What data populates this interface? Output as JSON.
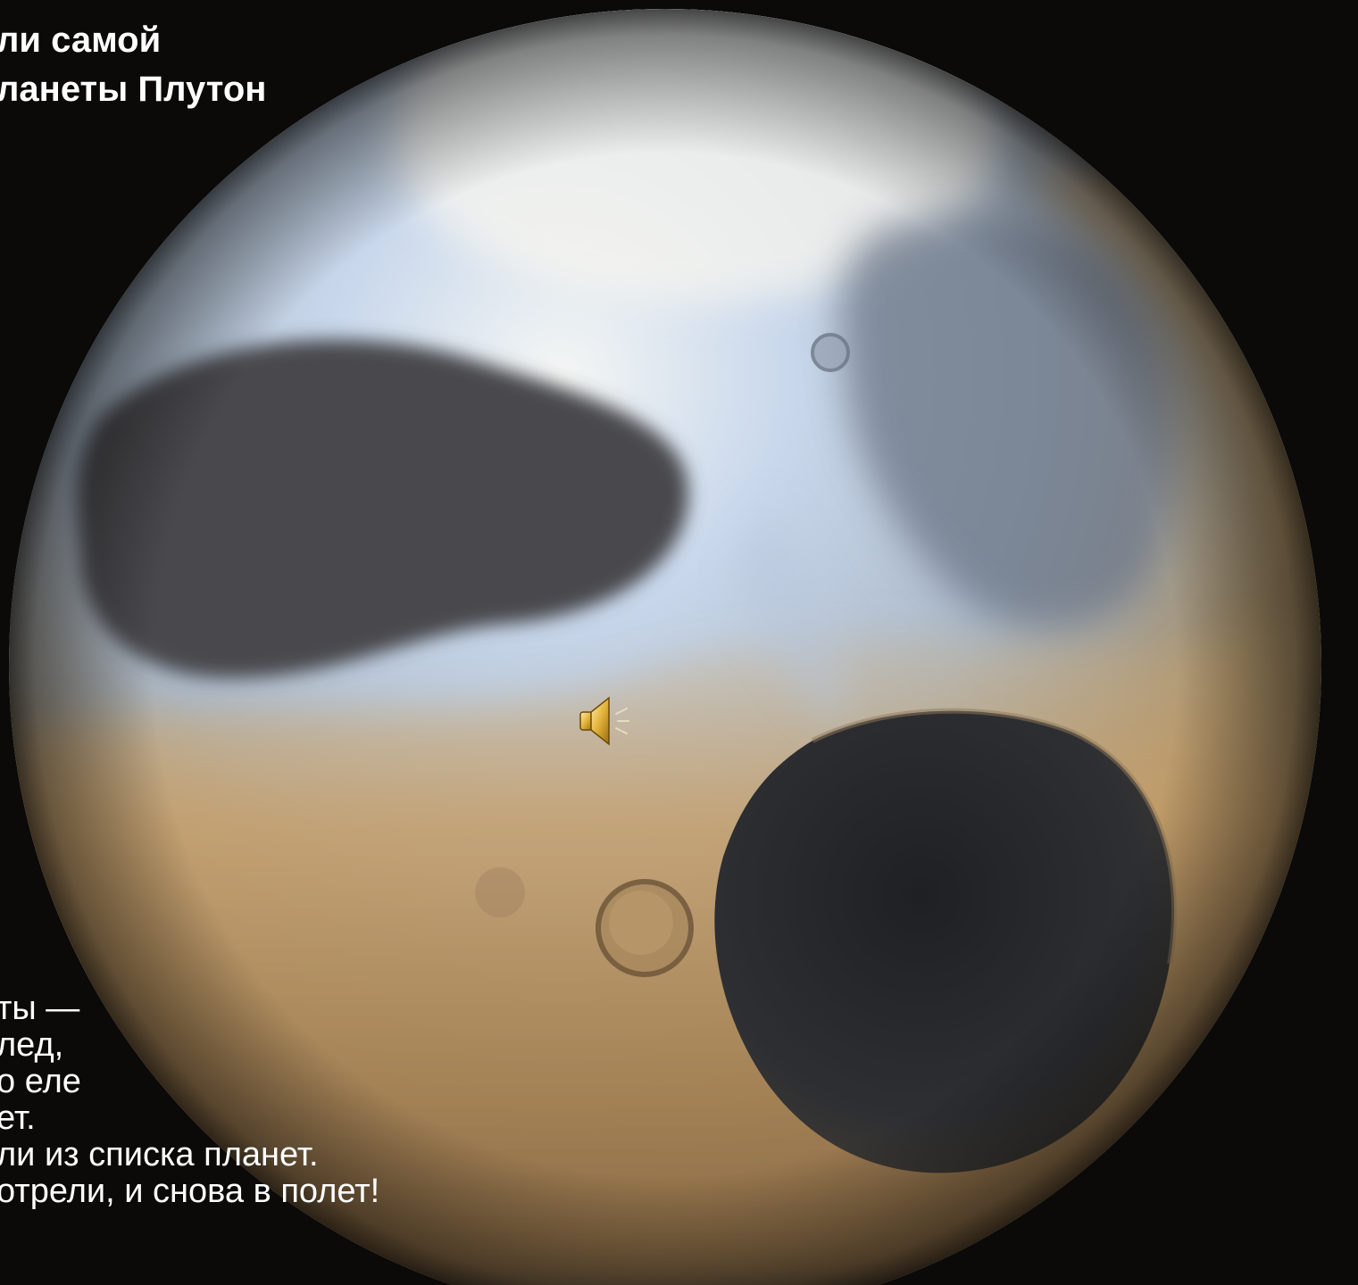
{
  "slide": {
    "title_lines": [
      "ли самой",
      "ланеты Плутон"
    ],
    "body_lines": [
      "ты —",
      "лед,",
      "о еле",
      "ет.",
      "ли из списка планет.",
      "отрели, и снова в полет!"
    ]
  },
  "media": {
    "sound_icon": "speaker-icon"
  },
  "colors": {
    "background": "#0b0a09",
    "ice_blue": "#bcd0ea",
    "tan": "#c9a36c",
    "dark_region": "#2b2b2e",
    "text": "#ffffff"
  }
}
